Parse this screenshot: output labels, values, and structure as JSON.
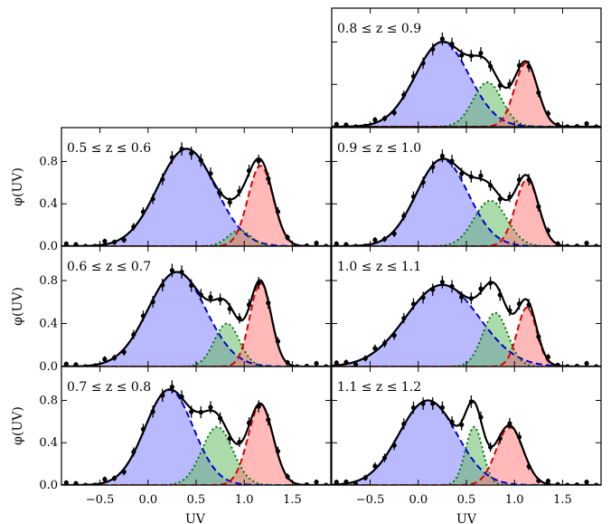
{
  "chart_data": {
    "type": "area",
    "description": "Grid of 7 panels showing UV color distribution phi(UV) in redshift bins, each fitted with three Gaussian components (blue, green, red) plus total fit and data points with error bars.",
    "xlabel": "UV",
    "ylabel": "φ(UV)",
    "xlim": [
      -0.9,
      1.9
    ],
    "ylim": [
      0.0,
      1.12
    ],
    "xticks": [
      -0.5,
      0.0,
      0.5,
      1.0,
      1.5
    ],
    "xtick_labels": [
      "−0.5",
      "0.0",
      "0.5",
      "1.0",
      "1.5"
    ],
    "yticks": [
      0.0,
      0.4,
      0.8
    ],
    "ytick_labels": [
      "0.0",
      "0.4",
      "0.8"
    ],
    "component_colors": {
      "blue": "#8080ff",
      "green": "#66bb66",
      "red": "#ff8080",
      "blue_line": "#0000cc",
      "green_line": "#007700",
      "red_line": "#dd0000"
    },
    "panels": [
      {
        "id": "p08",
        "title": "0.8 ≤ z ≤ 0.9",
        "components": [
          {
            "name": "blue",
            "amp": 0.8,
            "mu": 0.25,
            "sigma": 0.28
          },
          {
            "name": "green",
            "amp": 0.42,
            "mu": 0.72,
            "sigma": 0.15
          },
          {
            "name": "red",
            "amp": 0.6,
            "mu": 1.12,
            "sigma": 0.12
          }
        ]
      },
      {
        "id": "p05",
        "title": "0.5 ≤ z ≤ 0.6",
        "components": [
          {
            "name": "blue",
            "amp": 0.92,
            "mu": 0.4,
            "sigma": 0.3
          },
          {
            "name": "green",
            "amp": 0.15,
            "mu": 0.95,
            "sigma": 0.12
          },
          {
            "name": "red",
            "amp": 0.76,
            "mu": 1.17,
            "sigma": 0.13
          }
        ]
      },
      {
        "id": "p09",
        "title": "0.9 ≤ z ≤ 1.0",
        "components": [
          {
            "name": "blue",
            "amp": 0.82,
            "mu": 0.25,
            "sigma": 0.27
          },
          {
            "name": "green",
            "amp": 0.43,
            "mu": 0.75,
            "sigma": 0.17
          },
          {
            "name": "red",
            "amp": 0.63,
            "mu": 1.13,
            "sigma": 0.12
          }
        ]
      },
      {
        "id": "p06",
        "title": "0.6 ≤ z ≤ 0.7",
        "components": [
          {
            "name": "blue",
            "amp": 0.88,
            "mu": 0.3,
            "sigma": 0.3
          },
          {
            "name": "green",
            "amp": 0.4,
            "mu": 0.82,
            "sigma": 0.13
          },
          {
            "name": "red",
            "amp": 0.78,
            "mu": 1.17,
            "sigma": 0.11
          }
        ]
      },
      {
        "id": "p10",
        "title": "1.0 ≤ z ≤ 1.1",
        "components": [
          {
            "name": "blue",
            "amp": 0.76,
            "mu": 0.25,
            "sigma": 0.38
          },
          {
            "name": "green",
            "amp": 0.5,
            "mu": 0.8,
            "sigma": 0.13
          },
          {
            "name": "red",
            "amp": 0.55,
            "mu": 1.13,
            "sigma": 0.1
          }
        ]
      },
      {
        "id": "p07",
        "title": "0.7 ≤ z ≤ 0.8",
        "components": [
          {
            "name": "blue",
            "amp": 0.9,
            "mu": 0.22,
            "sigma": 0.25
          },
          {
            "name": "green",
            "amp": 0.55,
            "mu": 0.72,
            "sigma": 0.16
          },
          {
            "name": "red",
            "amp": 0.76,
            "mu": 1.17,
            "sigma": 0.13
          }
        ]
      },
      {
        "id": "p11",
        "title": "1.1 ≤ z ≤ 1.2",
        "components": [
          {
            "name": "blue",
            "amp": 0.8,
            "mu": 0.1,
            "sigma": 0.3
          },
          {
            "name": "green",
            "amp": 0.55,
            "mu": 0.58,
            "sigma": 0.09
          },
          {
            "name": "red",
            "amp": 0.55,
            "mu": 0.95,
            "sigma": 0.14
          }
        ]
      }
    ]
  }
}
